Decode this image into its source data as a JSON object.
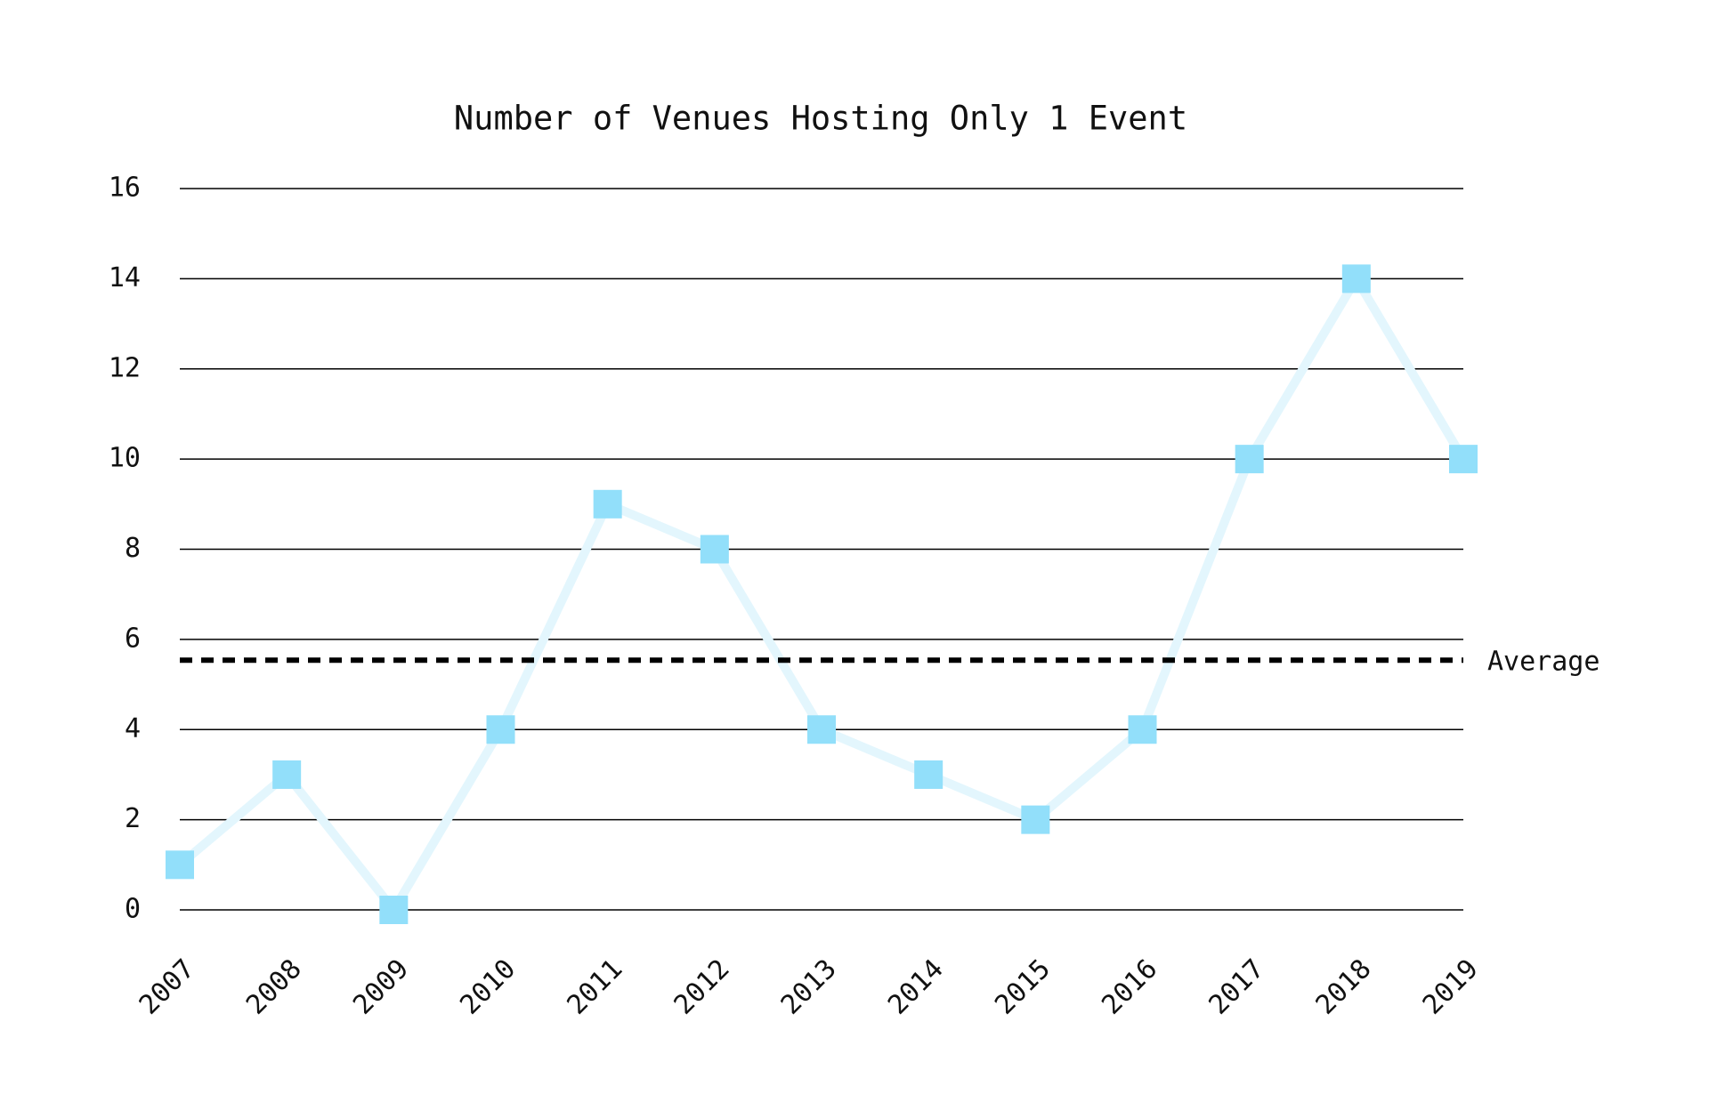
{
  "chart_data": {
    "type": "line",
    "title": "Number of Venues Hosting Only 1 Event",
    "categories": [
      "2007",
      "2008",
      "2009",
      "2010",
      "2011",
      "2012",
      "2013",
      "2014",
      "2015",
      "2016",
      "2017",
      "2018",
      "2019"
    ],
    "series": [
      {
        "color": "#92dffa",
        "line_color": "#e3f6fd",
        "values": [
          1,
          3,
          0,
          4,
          9,
          8,
          4,
          3,
          2,
          4,
          10,
          14,
          10
        ]
      }
    ],
    "ylim": [
      0,
      16
    ],
    "yticks": [
      0,
      2,
      4,
      6,
      8,
      10,
      12,
      14,
      16
    ],
    "grid": true,
    "average": {
      "label": "Average",
      "value": 5.54,
      "color": "#000000"
    }
  }
}
